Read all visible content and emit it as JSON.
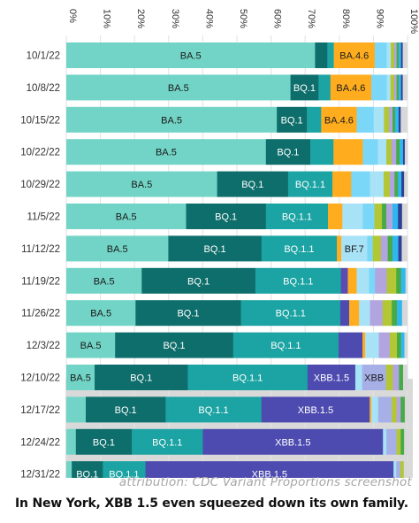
{
  "chart_data": {
    "type": "bar",
    "orientation": "horizontal",
    "stacked": true,
    "xlim": [
      0,
      100
    ],
    "x_ticks": [
      "0%",
      "10%",
      "20%",
      "30%",
      "40%",
      "50%",
      "60%",
      "70%",
      "80%",
      "90%",
      "100%"
    ],
    "highlighted_weeks": [
      "12/17/22",
      "12/24/22",
      "12/31/22"
    ],
    "colors": {
      "BA.5": "#72d4c6",
      "BQ.1": "#0e6e6b",
      "BQ.1.1": "#1ca3a3",
      "XBB.1.5": "#4d4baf",
      "BA.4.6": "#ffad1f",
      "BF.7": "#a7e2f7",
      "XBB": "#a7b0e6",
      "BA.2.75.2": "#7ad7f7",
      "blue-1": "#30b7f0",
      "lime": "#b3c634",
      "lavender": "#b2a4de",
      "green": "#46aa46",
      "navy": "#2f3f94",
      "purple-1": "#5c4bb3",
      "grey": "#d8d8d8",
      "olive": "#9aaa27",
      "orange-2": "#f6a41b",
      "yellow": "#e4e05c",
      "dkgreen": "#2e8b57",
      "teal-2": "#1aa0b3"
    },
    "categories": [
      "10/1/22",
      "10/8/22",
      "10/15/22",
      "10/22/22",
      "10/29/22",
      "11/5/22",
      "11/12/22",
      "11/19/22",
      "11/26/22",
      "12/3/22",
      "12/10/22",
      "12/17/22",
      "12/24/22",
      "12/31/22"
    ],
    "weeks": [
      {
        "week": "10/1/22",
        "segments": [
          {
            "variant": "BA.5",
            "value": 72.9,
            "label": "BA.5"
          },
          {
            "variant": "BQ.1",
            "value": 3.6
          },
          {
            "variant": "BQ.1.1",
            "value": 1.9
          },
          {
            "variant": "BA.4.6",
            "value": 12.0,
            "label": "BA.4.6"
          },
          {
            "variant": "BA.2.75.2",
            "value": 3.5
          },
          {
            "variant": "BF.7",
            "value": 1.2
          },
          {
            "variant": "lime",
            "value": 1.0
          },
          {
            "variant": "lavender",
            "value": 0.7
          },
          {
            "variant": "green",
            "value": 0.6
          },
          {
            "variant": "blue-1",
            "value": 0.7
          },
          {
            "variant": "navy",
            "value": 0.5
          },
          {
            "variant": "grey",
            "value": 1.4
          }
        ]
      },
      {
        "week": "10/8/22",
        "segments": [
          {
            "variant": "BA.5",
            "value": 65.7,
            "label": "BA.5"
          },
          {
            "variant": "BQ.1",
            "value": 8.2,
            "label": "BQ.1"
          },
          {
            "variant": "BQ.1.1",
            "value": 3.5
          },
          {
            "variant": "BA.4.6",
            "value": 12.0,
            "label": "BA.4.6"
          },
          {
            "variant": "BA.2.75.2",
            "value": 4.5
          },
          {
            "variant": "BF.7",
            "value": 1.1
          },
          {
            "variant": "lime",
            "value": 1.1
          },
          {
            "variant": "lavender",
            "value": 0.7
          },
          {
            "variant": "green",
            "value": 0.6
          },
          {
            "variant": "blue-1",
            "value": 0.7
          },
          {
            "variant": "navy",
            "value": 0.5
          },
          {
            "variant": "grey",
            "value": 1.4
          }
        ]
      },
      {
        "week": "10/15/22",
        "segments": [
          {
            "variant": "BA.5",
            "value": 61.7,
            "label": "BA.5"
          },
          {
            "variant": "BQ.1",
            "value": 8.8,
            "label": "BQ.1"
          },
          {
            "variant": "BQ.1.1",
            "value": 4.2
          },
          {
            "variant": "BA.4.6",
            "value": 10.4,
            "label": "BA.4.6"
          },
          {
            "variant": "BA.2.75.2",
            "value": 5.0
          },
          {
            "variant": "BF.7",
            "value": 3.0
          },
          {
            "variant": "lime",
            "value": 1.5
          },
          {
            "variant": "lavender",
            "value": 1.0
          },
          {
            "variant": "green",
            "value": 0.8
          },
          {
            "variant": "blue-1",
            "value": 1.0
          },
          {
            "variant": "navy",
            "value": 0.6
          },
          {
            "variant": "grey",
            "value": 2.0
          }
        ]
      },
      {
        "week": "10/22/22",
        "segments": [
          {
            "variant": "BA.5",
            "value": 58.5,
            "label": "BA.5"
          },
          {
            "variant": "BQ.1",
            "value": 13.0,
            "label": "BQ.1"
          },
          {
            "variant": "BQ.1.1",
            "value": 6.8
          },
          {
            "variant": "BA.4.6",
            "value": 8.6
          },
          {
            "variant": "BA.2.75.2",
            "value": 4.4
          },
          {
            "variant": "BF.7",
            "value": 2.5
          },
          {
            "variant": "lime",
            "value": 1.5
          },
          {
            "variant": "lavender",
            "value": 1.4
          },
          {
            "variant": "green",
            "value": 1.0
          },
          {
            "variant": "blue-1",
            "value": 1.0
          },
          {
            "variant": "navy",
            "value": 0.5
          },
          {
            "variant": "grey",
            "value": 0.8
          }
        ]
      },
      {
        "week": "10/29/22",
        "segments": [
          {
            "variant": "BA.5",
            "value": 44.2,
            "label": "BA.5"
          },
          {
            "variant": "BQ.1",
            "value": 20.8,
            "label": "BQ.1"
          },
          {
            "variant": "BQ.1.1",
            "value": 13.0,
            "label": "BQ.1.1"
          },
          {
            "variant": "BA.4.6",
            "value": 5.5
          },
          {
            "variant": "BA.2.75.2",
            "value": 5.5
          },
          {
            "variant": "BF.7",
            "value": 4.0
          },
          {
            "variant": "lime",
            "value": 1.8
          },
          {
            "variant": "lavender",
            "value": 1.4
          },
          {
            "variant": "green",
            "value": 1.0
          },
          {
            "variant": "blue-1",
            "value": 1.0
          },
          {
            "variant": "navy",
            "value": 0.8
          },
          {
            "variant": "grey",
            "value": 1.0
          }
        ]
      },
      {
        "week": "11/5/22",
        "segments": [
          {
            "variant": "BA.5",
            "value": 35.1,
            "label": "BA.5"
          },
          {
            "variant": "BQ.1",
            "value": 23.4,
            "label": "BQ.1"
          },
          {
            "variant": "BQ.1.1",
            "value": 18.2,
            "label": "BQ.1.1"
          },
          {
            "variant": "BA.4.6",
            "value": 4.2
          },
          {
            "variant": "BF.7",
            "value": 6.0
          },
          {
            "variant": "BA.2.75.2",
            "value": 3.4
          },
          {
            "variant": "lime",
            "value": 2.2
          },
          {
            "variant": "green",
            "value": 1.3
          },
          {
            "variant": "lavender",
            "value": 1.8
          },
          {
            "variant": "blue-1",
            "value": 1.6
          },
          {
            "variant": "navy",
            "value": 1.2
          },
          {
            "variant": "grey",
            "value": 1.6
          }
        ]
      },
      {
        "week": "11/12/22",
        "segments": [
          {
            "variant": "BA.5",
            "value": 29.9,
            "label": "BA.5"
          },
          {
            "variant": "BQ.1",
            "value": 27.3,
            "label": "BQ.1"
          },
          {
            "variant": "BQ.1.1",
            "value": 22.1,
            "label": "BQ.1.1"
          },
          {
            "variant": "BA.4.6",
            "value": 1.3
          },
          {
            "variant": "BF.7",
            "value": 7.6,
            "label": "BF.7"
          },
          {
            "variant": "BA.2.75.2",
            "value": 1.6
          },
          {
            "variant": "lime",
            "value": 2.4
          },
          {
            "variant": "lavender",
            "value": 2.0
          },
          {
            "variant": "green",
            "value": 1.4
          },
          {
            "variant": "blue-1",
            "value": 1.7
          },
          {
            "variant": "navy",
            "value": 1.0
          },
          {
            "variant": "grey",
            "value": 1.7
          }
        ]
      },
      {
        "week": "11/19/22",
        "segments": [
          {
            "variant": "BA.5",
            "value": 22.1,
            "label": "BA.5"
          },
          {
            "variant": "BQ.1",
            "value": 33.3,
            "label": "BQ.1"
          },
          {
            "variant": "BQ.1.1",
            "value": 25.1,
            "label": "BQ.1.1"
          },
          {
            "variant": "purple-1",
            "value": 2.0
          },
          {
            "variant": "BA.4.6",
            "value": 2.6
          },
          {
            "variant": "BF.7",
            "value": 3.6
          },
          {
            "variant": "BA.2.75.2",
            "value": 1.8
          },
          {
            "variant": "lavender",
            "value": 3.4
          },
          {
            "variant": "lime",
            "value": 2.8
          },
          {
            "variant": "green",
            "value": 1.4
          },
          {
            "variant": "blue-1",
            "value": 1.3
          },
          {
            "variant": "grey",
            "value": 0.6
          }
        ]
      },
      {
        "week": "11/26/22",
        "segments": [
          {
            "variant": "BA.5",
            "value": 20.3,
            "label": "BA.5"
          },
          {
            "variant": "BQ.1",
            "value": 30.9,
            "label": "BQ.1"
          },
          {
            "variant": "BQ.1.1",
            "value": 29.1,
            "label": "BQ.1.1"
          },
          {
            "variant": "XBB.1.5",
            "value": 2.6
          },
          {
            "variant": "BA.4.6",
            "value": 2.9
          },
          {
            "variant": "BF.7",
            "value": 3.2
          },
          {
            "variant": "lavender",
            "value": 3.7
          },
          {
            "variant": "lime",
            "value": 2.7
          },
          {
            "variant": "green",
            "value": 1.5
          },
          {
            "variant": "blue-1",
            "value": 1.5
          },
          {
            "variant": "grey",
            "value": 1.6
          }
        ]
      },
      {
        "week": "12/3/22",
        "segments": [
          {
            "variant": "BA.5",
            "value": 14.3,
            "label": "BA.5"
          },
          {
            "variant": "BQ.1",
            "value": 34.6,
            "label": "BQ.1"
          },
          {
            "variant": "BQ.1.1",
            "value": 30.9,
            "label": "BQ.1.1"
          },
          {
            "variant": "XBB.1.5",
            "value": 7.0
          },
          {
            "variant": "BA.4.6",
            "value": 0.8
          },
          {
            "variant": "BF.7",
            "value": 4.0
          },
          {
            "variant": "lavender",
            "value": 3.2
          },
          {
            "variant": "lime",
            "value": 2.1
          },
          {
            "variant": "green",
            "value": 1.2
          },
          {
            "variant": "blue-1",
            "value": 1.0
          },
          {
            "variant": "grey",
            "value": 0.9
          }
        ]
      },
      {
        "week": "12/10/22",
        "segments": [
          {
            "variant": "BA.5",
            "value": 8.3,
            "label": "BA.5"
          },
          {
            "variant": "BQ.1",
            "value": 27.3,
            "label": "BQ.1"
          },
          {
            "variant": "BQ.1.1",
            "value": 35.1,
            "label": "BQ.1.1"
          },
          {
            "variant": "XBB.1.5",
            "value": 14.0,
            "label": "XBB.1.5"
          },
          {
            "variant": "BF.7",
            "value": 2.0
          },
          {
            "variant": "XBB",
            "value": 7.0,
            "label": "XBB"
          },
          {
            "variant": "lime",
            "value": 2.0
          },
          {
            "variant": "lavender",
            "value": 1.8
          },
          {
            "variant": "green",
            "value": 1.2
          },
          {
            "variant": "grey",
            "value": 1.3
          }
        ]
      },
      {
        "week": "12/17/22",
        "segments": [
          {
            "variant": "BA.5",
            "value": 5.7
          },
          {
            "variant": "BQ.1",
            "value": 23.4,
            "label": "BQ.1"
          },
          {
            "variant": "BQ.1.1",
            "value": 28.1,
            "label": "BQ.1.1"
          },
          {
            "variant": "XBB.1.5",
            "value": 31.7,
            "label": "XBB.1.5"
          },
          {
            "variant": "BA.4.6",
            "value": 0.5
          },
          {
            "variant": "BF.7",
            "value": 2.0
          },
          {
            "variant": "XBB",
            "value": 4.0
          },
          {
            "variant": "lime",
            "value": 1.4
          },
          {
            "variant": "lavender",
            "value": 1.2
          },
          {
            "variant": "green",
            "value": 1.2
          },
          {
            "variant": "grey",
            "value": 0.8
          }
        ]
      },
      {
        "week": "12/24/22",
        "segments": [
          {
            "variant": "BA.5",
            "value": 2.8
          },
          {
            "variant": "BQ.1",
            "value": 16.4,
            "label": "BQ.1"
          },
          {
            "variant": "BQ.1.1",
            "value": 20.8,
            "label": "BQ.1.1"
          },
          {
            "variant": "XBB.1.5",
            "value": 52.8,
            "label": "XBB.1.5"
          },
          {
            "variant": "BF.7",
            "value": 1.0
          },
          {
            "variant": "XBB",
            "value": 3.0
          },
          {
            "variant": "lime",
            "value": 1.2
          },
          {
            "variant": "green",
            "value": 1.0
          },
          {
            "variant": "grey",
            "value": 1.0
          }
        ]
      },
      {
        "week": "12/31/22",
        "segments": [
          {
            "variant": "BA.5",
            "value": 1.6
          },
          {
            "variant": "BQ.1",
            "value": 9.1,
            "label": "BQ.1"
          },
          {
            "variant": "BQ.1.1",
            "value": 12.5,
            "label": "BQ.1.1"
          },
          {
            "variant": "XBB.1.5",
            "value": 72.7,
            "label": "XBB.1.5"
          },
          {
            "variant": "BF.7",
            "value": 0.8
          },
          {
            "variant": "XBB",
            "value": 1.2
          },
          {
            "variant": "lime",
            "value": 1.0
          },
          {
            "variant": "grey",
            "value": 1.1
          }
        ]
      }
    ]
  },
  "attribution": "attribution: CDC Variant Proportions screenshot",
  "caption": "In New York, XBB 1.5 even squeezed down its own family."
}
